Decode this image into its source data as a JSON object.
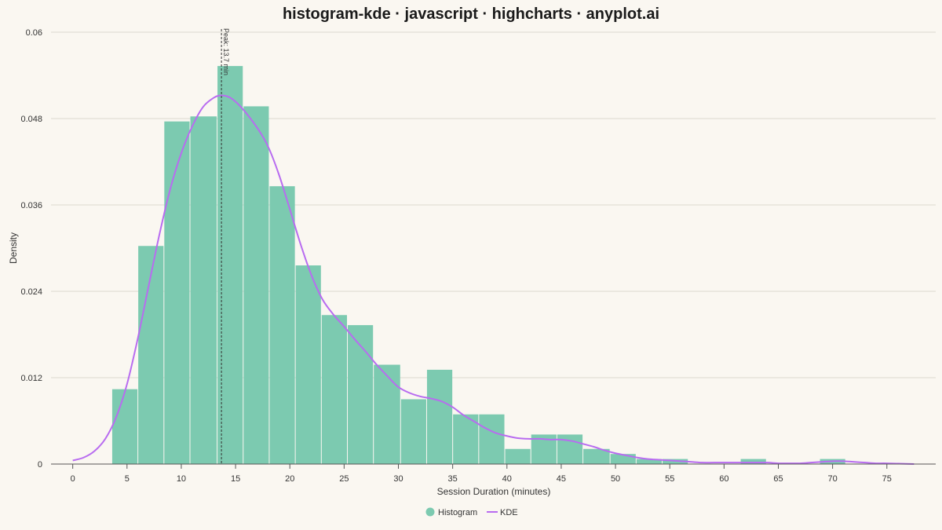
{
  "chart_data": {
    "type": "bar",
    "title": "histogram-kde · javascript · highcharts · anyplot.ai",
    "xlabel": "Session Duration (minutes)",
    "ylabel": "Density",
    "xlim": [
      -2,
      79.5
    ],
    "ylim": [
      0,
      0.06
    ],
    "grid": true,
    "legend_position": "bottom-center",
    "x_ticks": [
      0,
      5,
      10,
      15,
      20,
      25,
      30,
      35,
      40,
      45,
      50,
      55,
      60,
      65,
      70,
      75
    ],
    "y_ticks": [
      0,
      0.012,
      0.024,
      0.036,
      0.048,
      0.06
    ],
    "y_tick_labels": [
      "0",
      "0.012",
      "0.024",
      "0.036",
      "0.048",
      "0.06"
    ],
    "series": [
      {
        "name": "Histogram",
        "type": "bar",
        "color": "#7CCAB0",
        "bins": [
          {
            "x0": 3.6,
            "x1": 6.0,
            "value": 0.0104
          },
          {
            "x0": 6.0,
            "x1": 8.4,
            "value": 0.0303
          },
          {
            "x0": 8.4,
            "x1": 10.8,
            "value": 0.0476
          },
          {
            "x0": 10.8,
            "x1": 13.3,
            "value": 0.0483
          },
          {
            "x0": 13.3,
            "x1": 15.7,
            "value": 0.0553
          },
          {
            "x0": 15.7,
            "x1": 18.1,
            "value": 0.0497
          },
          {
            "x0": 18.1,
            "x1": 20.5,
            "value": 0.0386
          },
          {
            "x0": 20.5,
            "x1": 22.9,
            "value": 0.0276
          },
          {
            "x0": 22.9,
            "x1": 25.3,
            "value": 0.0207
          },
          {
            "x0": 25.3,
            "x1": 27.7,
            "value": 0.0193
          },
          {
            "x0": 27.7,
            "x1": 30.2,
            "value": 0.0138
          },
          {
            "x0": 30.2,
            "x1": 32.6,
            "value": 0.009
          },
          {
            "x0": 32.6,
            "x1": 35.0,
            "value": 0.0131
          },
          {
            "x0": 35.0,
            "x1": 37.4,
            "value": 0.0069
          },
          {
            "x0": 37.4,
            "x1": 39.8,
            "value": 0.0069
          },
          {
            "x0": 39.8,
            "x1": 42.2,
            "value": 0.0021
          },
          {
            "x0": 42.2,
            "x1": 44.6,
            "value": 0.0041
          },
          {
            "x0": 44.6,
            "x1": 47.0,
            "value": 0.0041
          },
          {
            "x0": 47.0,
            "x1": 49.5,
            "value": 0.0021
          },
          {
            "x0": 49.5,
            "x1": 51.9,
            "value": 0.0014
          },
          {
            "x0": 51.9,
            "x1": 54.3,
            "value": 0.0007
          },
          {
            "x0": 54.3,
            "x1": 56.7,
            "value": 0.0007
          },
          {
            "x0": 61.5,
            "x1": 63.9,
            "value": 0.0007
          },
          {
            "x0": 68.8,
            "x1": 71.2,
            "value": 0.0007
          }
        ]
      },
      {
        "name": "KDE",
        "type": "line",
        "color": "#B86CF0",
        "points": [
          [
            0,
            0.0005
          ],
          [
            1,
            0.0009
          ],
          [
            2,
            0.0018
          ],
          [
            3,
            0.0035
          ],
          [
            4,
            0.0065
          ],
          [
            5,
            0.0111
          ],
          [
            6,
            0.0175
          ],
          [
            7,
            0.0248
          ],
          [
            8,
            0.032
          ],
          [
            9,
            0.0383
          ],
          [
            10,
            0.0432
          ],
          [
            11,
            0.0469
          ],
          [
            12,
            0.0496
          ],
          [
            13,
            0.0509
          ],
          [
            13.7,
            0.0512
          ],
          [
            14.5,
            0.0509
          ],
          [
            15.5,
            0.0496
          ],
          [
            17,
            0.0467
          ],
          [
            18,
            0.0441
          ],
          [
            19,
            0.0402
          ],
          [
            20,
            0.0354
          ],
          [
            21,
            0.0305
          ],
          [
            22,
            0.0262
          ],
          [
            23,
            0.0229
          ],
          [
            24,
            0.0208
          ],
          [
            25,
            0.0191
          ],
          [
            26,
            0.0173
          ],
          [
            27,
            0.0156
          ],
          [
            28,
            0.0138
          ],
          [
            29,
            0.0122
          ],
          [
            30,
            0.0107
          ],
          [
            31,
            0.0099
          ],
          [
            32,
            0.0094
          ],
          [
            33,
            0.0091
          ],
          [
            34,
            0.0087
          ],
          [
            35,
            0.0079
          ],
          [
            36,
            0.0068
          ],
          [
            37,
            0.0059
          ],
          [
            38,
            0.005
          ],
          [
            39,
            0.0043
          ],
          [
            40,
            0.0039
          ],
          [
            41,
            0.0036
          ],
          [
            42,
            0.0035
          ],
          [
            43,
            0.0035
          ],
          [
            44,
            0.0034
          ],
          [
            45,
            0.0034
          ],
          [
            46,
            0.0032
          ],
          [
            47,
            0.0028
          ],
          [
            48,
            0.0024
          ],
          [
            49,
            0.0019
          ],
          [
            50,
            0.0015
          ],
          [
            51,
            0.0012
          ],
          [
            52,
            0.0009
          ],
          [
            53,
            0.0007
          ],
          [
            54,
            0.0006
          ],
          [
            55,
            0.0005
          ],
          [
            56,
            0.0004
          ],
          [
            57,
            0.0003
          ],
          [
            58,
            0.0002
          ],
          [
            59,
            0.0002
          ],
          [
            60,
            0.0002
          ],
          [
            61,
            0.0002
          ],
          [
            62,
            0.0002
          ],
          [
            63,
            0.0002
          ],
          [
            64,
            0.0002
          ],
          [
            65,
            0.0001
          ],
          [
            66,
            0.0001
          ],
          [
            67,
            0.0001
          ],
          [
            68,
            0.0002
          ],
          [
            69,
            0.0003
          ],
          [
            70,
            0.0004
          ],
          [
            71,
            0.0004
          ],
          [
            72,
            0.0003
          ],
          [
            73,
            0.0002
          ],
          [
            74,
            0.0001
          ],
          [
            75,
            0.0001
          ],
          [
            77.5,
            0.0
          ]
        ]
      }
    ],
    "annotations": [
      {
        "x": 13.7,
        "label": "Peak: 13.7 min"
      }
    ]
  },
  "legend": {
    "items": [
      {
        "label": "Histogram",
        "color": "#7CCAB0",
        "shape": "circle"
      },
      {
        "label": "KDE",
        "color": "#B86CF0",
        "shape": "line"
      }
    ]
  }
}
